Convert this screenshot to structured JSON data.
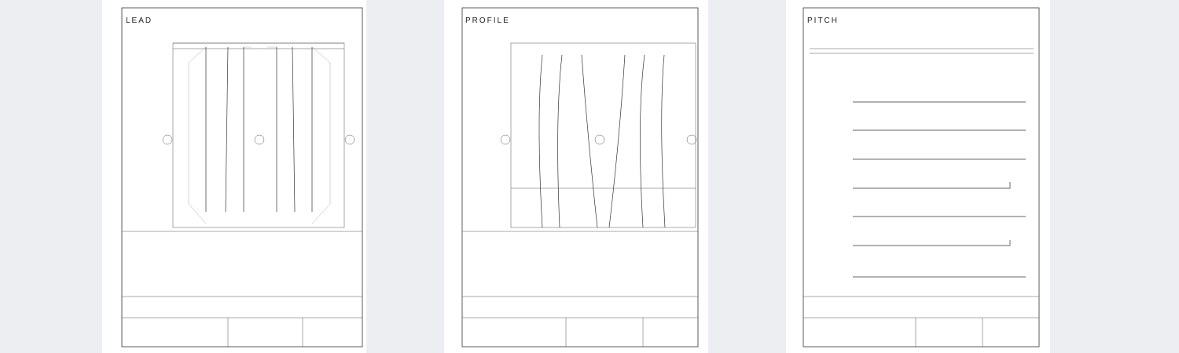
{
  "pages": [
    {
      "title": "LEAD"
    },
    {
      "title": "PROFILE"
    },
    {
      "title": "PITCH"
    }
  ]
}
